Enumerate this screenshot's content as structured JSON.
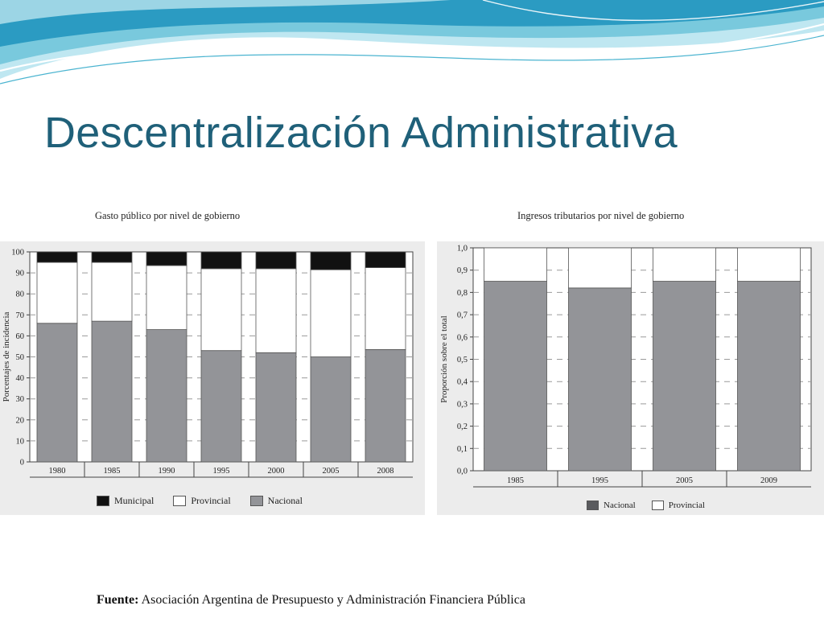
{
  "slide": {
    "title": "Descentralización Administrativa",
    "source_label": "Fuente:",
    "source_text": "Asociación Argentina de Presupuesto y Administración Financiera Pública"
  },
  "colors": {
    "title": "#1f6079",
    "municipal": "#111111",
    "provincial": "#ffffff",
    "nacional": "#939498",
    "wave_light": "#bfe7f1",
    "wave_mid": "#6cc3d9",
    "wave_dark": "#1d93bd"
  },
  "chart_data": [
    {
      "type": "bar",
      "stacked": true,
      "title": "Gasto público por nivel de gobierno",
      "ylabel": "Porcentajes de incidencia",
      "xlabel": "",
      "ylim": [
        0,
        100
      ],
      "yticks": [
        "0",
        "10",
        "20",
        "30",
        "40",
        "50",
        "60",
        "70",
        "80",
        "90",
        "100"
      ],
      "categories": [
        "1980",
        "1985",
        "1990",
        "1995",
        "2000",
        "2005",
        "2008"
      ],
      "series": [
        {
          "name": "Nacional",
          "color": "#939498",
          "values": [
            66,
            67,
            63,
            53,
            52,
            50,
            53.5
          ]
        },
        {
          "name": "Provincial",
          "color": "#ffffff",
          "values": [
            29,
            28,
            30.5,
            39,
            40,
            41.5,
            39
          ]
        },
        {
          "name": "Municipal",
          "color": "#111111",
          "values": [
            5,
            5,
            6.5,
            8,
            8,
            8.5,
            7.5
          ]
        }
      ],
      "legend": [
        "Municipal",
        "Provincial",
        "Nacional"
      ],
      "legend_position": "bottom",
      "grid": "dashed"
    },
    {
      "type": "bar",
      "stacked": true,
      "title": "Ingresos tributarios por nivel de gobierno",
      "ylabel": "Proporción sobre el total",
      "xlabel": "",
      "ylim": [
        0,
        1
      ],
      "yticks": [
        "0,0",
        "0,1",
        "0,2",
        "0,3",
        "0,4",
        "0,5",
        "0,6",
        "0,7",
        "0,8",
        "0,9",
        "1,0"
      ],
      "categories": [
        "1985",
        "1995",
        "2005",
        "2009"
      ],
      "series": [
        {
          "name": "Nacional",
          "color": "#939498",
          "values": [
            0.85,
            0.82,
            0.85,
            0.85
          ]
        },
        {
          "name": "Provincial",
          "color": "#ffffff",
          "values": [
            0.15,
            0.18,
            0.15,
            0.15
          ]
        }
      ],
      "legend": [
        "Nacional",
        "Provincial"
      ],
      "legend_position": "bottom",
      "grid": "dashed"
    }
  ]
}
